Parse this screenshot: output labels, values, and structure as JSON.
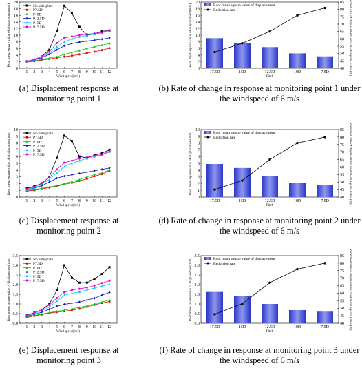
{
  "captions": {
    "a": {
      "letter": "(a)",
      "text": "Displacement response at monitoring point 1"
    },
    "b": {
      "letter": "(b)",
      "text": "Rate of change in response at monitoring point 1 under the windspeed of 6 m/s"
    },
    "c": {
      "letter": "(c)",
      "text": "Displacement response at monitoring point 2"
    },
    "d": {
      "letter": "(d)",
      "text": "Rate of change in response at monitoring point 2 under the windspeed of 6 m/s"
    },
    "e": {
      "letter": "(e)",
      "text": "Displacement response at monitoring point 3"
    },
    "f": {
      "letter": "(f)",
      "text": "Rate of change in response at monitoring point 3 under the windspeed of 6 m/s"
    }
  },
  "colors": {
    "No side plate": "#000000",
    "P7.5D": "#e00000",
    "P10D": "#00cc00",
    "P12.5D": "#1010c0",
    "P15D": "#00c8e8",
    "P17.5D": "#e000e0",
    "bar": "#3a46d6",
    "rate": "#000000"
  },
  "chart_data": [
    {
      "type": "line",
      "xlabel": "Wind speed(m/s)",
      "ylabel": "Root mean square value of displacement(mm)",
      "x": [
        1,
        2,
        3,
        4,
        5,
        6,
        7,
        8,
        9,
        10,
        11,
        12
      ],
      "xlim": [
        0,
        13
      ],
      "ylim": [
        0,
        20
      ],
      "yticks": [
        0,
        2,
        4,
        6,
        8,
        10,
        12,
        14,
        16,
        18,
        20
      ],
      "legend": "top-left",
      "series": [
        {
          "name": "No side plate",
          "values": [
            2.1,
            2.5,
            3.6,
            5.6,
            11.2,
            18.9,
            16.6,
            12.5,
            10.0,
            10.4,
            11.2,
            11.4
          ]
        },
        {
          "name": "P7.5D",
          "values": [
            1.9,
            2.1,
            2.5,
            2.8,
            3.2,
            3.5,
            3.8,
            4.2,
            4.6,
            5.0,
            5.5,
            6.1
          ]
        },
        {
          "name": "P10D",
          "values": [
            2.0,
            2.3,
            2.7,
            3.1,
            3.5,
            4.2,
            4.8,
            5.4,
            6.0,
            6.5,
            7.0,
            7.5
          ]
        },
        {
          "name": "P12.5D",
          "values": [
            2.0,
            2.5,
            3.2,
            4.2,
            5.6,
            6.8,
            7.5,
            7.9,
            8.2,
            8.5,
            8.8,
            9.2
          ]
        },
        {
          "name": "P15D",
          "values": [
            2.0,
            2.6,
            3.4,
            4.6,
            6.5,
            8.0,
            8.9,
            9.5,
            9.9,
            10.3,
            10.7,
            11.2
          ]
        },
        {
          "name": "P17.5D",
          "values": [
            2.1,
            2.7,
            3.6,
            5.0,
            7.6,
            9.2,
            9.6,
            10.0,
            10.3,
            10.5,
            10.8,
            11.5
          ]
        }
      ]
    },
    {
      "type": "bar",
      "xlabel": "Pitch",
      "ylabel": "Root mean square value of displacement(mm)",
      "y2label": "Reduction rate of displacement root mean square value (%)",
      "categories": [
        "17.5D",
        "15D",
        "12.5D",
        "10D",
        "7.5D"
      ],
      "ylim": [
        0,
        20
      ],
      "yticks": [
        0,
        2,
        4,
        6,
        8,
        10,
        12,
        14,
        16,
        18,
        20
      ],
      "y2lim": [
        40,
        85
      ],
      "y2ticks": [
        40,
        45,
        50,
        55,
        60,
        65,
        70,
        75,
        80,
        85
      ],
      "legend": "top-left",
      "series": [
        {
          "name": "Root mean square value of displacement",
          "values": [
            9.1,
            7.7,
            6.4,
            4.5,
            3.6
          ]
        },
        {
          "name": "Reduction rate",
          "axis": "right",
          "values": [
            51,
            57,
            65,
            76,
            81
          ]
        }
      ]
    },
    {
      "type": "line",
      "xlabel": "Wind speed(m/s)",
      "ylabel": "Root mean square value of displacement(mm)",
      "x": [
        1,
        2,
        3,
        4,
        5,
        6,
        7,
        8,
        9,
        10,
        11,
        12
      ],
      "xlim": [
        0,
        13
      ],
      "ylim": [
        0,
        10
      ],
      "yticks": [
        0,
        1,
        2,
        3,
        4,
        5,
        6,
        7,
        8,
        9,
        10
      ],
      "legend": "top-left",
      "series": [
        {
          "name": "No side plate",
          "values": [
            1.3,
            1.6,
            2.0,
            3.0,
            5.8,
            9.1,
            8.3,
            6.0,
            5.8,
            6.2,
            6.5,
            7.0
          ]
        },
        {
          "name": "P7.5D",
          "values": [
            0.9,
            1.0,
            1.2,
            1.4,
            1.6,
            1.9,
            2.1,
            2.4,
            2.7,
            3.1,
            3.4,
            3.9
          ]
        },
        {
          "name": "P10D",
          "values": [
            1.0,
            1.1,
            1.3,
            1.5,
            1.7,
            2.0,
            2.3,
            2.6,
            3.0,
            3.3,
            3.6,
            4.0
          ]
        },
        {
          "name": "P12.5D",
          "values": [
            1.1,
            1.3,
            1.7,
            2.2,
            2.8,
            3.1,
            3.3,
            3.5,
            3.7,
            3.9,
            4.1,
            4.3
          ]
        },
        {
          "name": "P15D",
          "values": [
            1.1,
            1.4,
            1.9,
            2.6,
            3.6,
            4.5,
            5.0,
            5.4,
            5.7,
            6.0,
            6.2,
            6.7
          ]
        },
        {
          "name": "P17.5D",
          "values": [
            1.2,
            1.5,
            2.1,
            2.9,
            4.1,
            5.1,
            5.4,
            5.7,
            5.9,
            6.1,
            6.3,
            6.8
          ]
        }
      ]
    },
    {
      "type": "bar",
      "xlabel": "Pitch",
      "ylabel": "Root mean square value of displacement(mm)",
      "y2label": "Reduction rate of displacement root mean square value (%)",
      "categories": [
        "17.5D",
        "15D",
        "12.5D",
        "10D",
        "7.5D"
      ],
      "ylim": [
        0,
        10
      ],
      "yticks": [
        0,
        1,
        2,
        3,
        4,
        5,
        6,
        7,
        8,
        9,
        10
      ],
      "y2lim": [
        40,
        85
      ],
      "y2ticks": [
        40,
        45,
        50,
        55,
        60,
        65,
        70,
        75,
        80,
        85
      ],
      "legend": "top-left",
      "series": [
        {
          "name": "Root mean square value of displacement",
          "values": [
            4.9,
            4.3,
            3.1,
            2.1,
            1.8
          ]
        },
        {
          "name": "Reduction rate",
          "axis": "right",
          "values": [
            45,
            51,
            65,
            76,
            80
          ]
        }
      ]
    },
    {
      "type": "line",
      "xlabel": "Wind speed(m/s)",
      "ylabel": "Root mean square value of displacement(mm)",
      "x": [
        1,
        2,
        3,
        4,
        5,
        6,
        7,
        8,
        9,
        10,
        11,
        12
      ],
      "xlim": [
        0,
        13
      ],
      "ylim": [
        0,
        3.5
      ],
      "yticks": [
        0.0,
        0.5,
        1.0,
        1.5,
        2.0,
        2.5,
        3.0,
        3.5
      ],
      "legend": "top-left",
      "series": [
        {
          "name": "No side plate",
          "values": [
            0.4,
            0.55,
            0.7,
            1.0,
            1.7,
            3.0,
            2.35,
            2.1,
            2.1,
            2.3,
            2.55,
            2.9
          ]
        },
        {
          "name": "P7.5D",
          "values": [
            0.3,
            0.38,
            0.45,
            0.52,
            0.58,
            0.62,
            0.68,
            0.75,
            0.85,
            0.95,
            1.05,
            1.12
          ]
        },
        {
          "name": "P10D",
          "values": [
            0.33,
            0.4,
            0.48,
            0.55,
            0.62,
            0.68,
            0.75,
            0.82,
            0.9,
            1.0,
            1.1,
            1.2
          ]
        },
        {
          "name": "P12.5D",
          "values": [
            0.37,
            0.45,
            0.58,
            0.72,
            0.88,
            0.98,
            1.04,
            1.1,
            1.2,
            1.3,
            1.45,
            1.6
          ]
        },
        {
          "name": "P15D",
          "values": [
            0.4,
            0.5,
            0.65,
            0.85,
            1.15,
            1.45,
            1.55,
            1.62,
            1.72,
            1.82,
            1.92,
            2.02
          ]
        },
        {
          "name": "P17.5D",
          "values": [
            0.43,
            0.55,
            0.7,
            0.95,
            1.3,
            1.6,
            1.72,
            1.78,
            1.85,
            1.95,
            2.08,
            2.2
          ]
        }
      ]
    },
    {
      "type": "bar",
      "xlabel": "Pitch",
      "ylabel": "Root mean square value of displacement(mm)",
      "y2label": "Reduction rate of displacement root mean square value (%)",
      "categories": [
        "17.5D",
        "15D",
        "12.5D",
        "10D",
        "7.5D"
      ],
      "ylim": [
        0,
        3.5
      ],
      "yticks": [
        0.0,
        0.5,
        1.0,
        1.5,
        2.0,
        2.5,
        3.0,
        3.5
      ],
      "y2lim": [
        40,
        85
      ],
      "y2ticks": [
        40,
        45,
        50,
        55,
        60,
        65,
        70,
        75,
        80,
        85
      ],
      "legend": "top-left",
      "series": [
        {
          "name": "Root mean square value of displacement",
          "values": [
            1.62,
            1.4,
            1.0,
            0.68,
            0.6
          ]
        },
        {
          "name": "Reduction rate",
          "axis": "right",
          "values": [
            46,
            53,
            67,
            76,
            80
          ]
        }
      ]
    }
  ]
}
